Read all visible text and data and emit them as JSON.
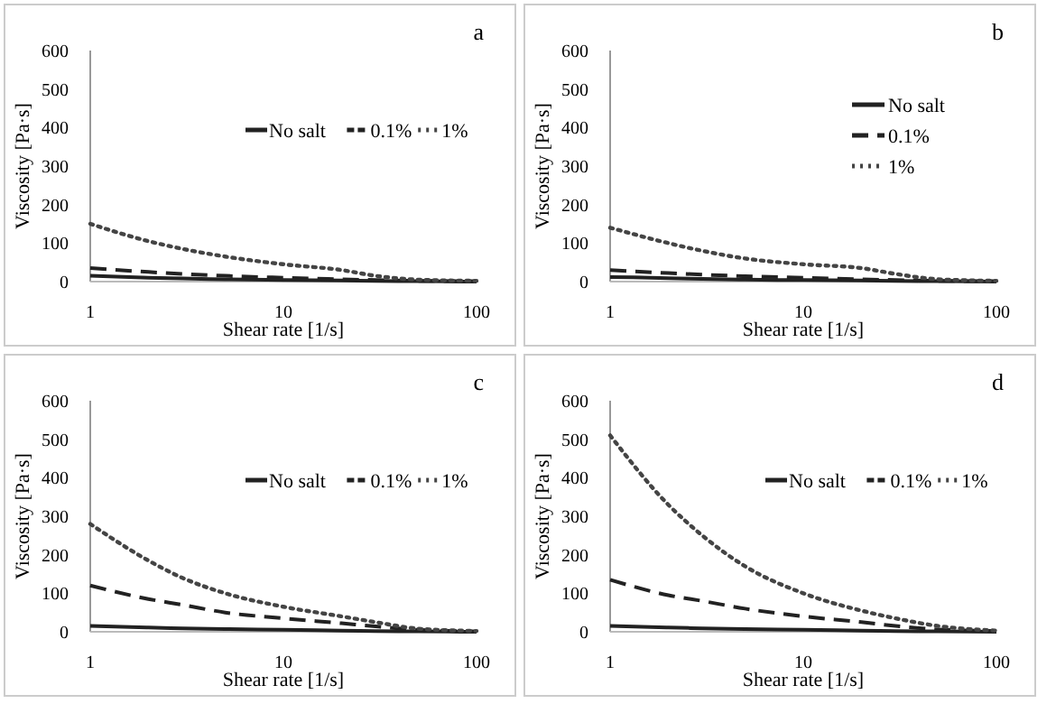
{
  "chart_data": [
    {
      "type": "line",
      "title": "a",
      "xlabel": "Shear rate [1/s]",
      "ylabel": "Viscosity [Pa·s]",
      "log": "x",
      "xlim": [
        1,
        100
      ],
      "xticks": [
        1,
        10,
        100
      ],
      "ylim": [
        0,
        600
      ],
      "yticks": [
        0,
        100,
        200,
        300,
        400,
        500,
        600
      ],
      "grid": false,
      "legend": "top right",
      "marker": "none",
      "x": [
        1,
        2,
        3,
        5,
        10,
        20,
        30,
        50,
        100
      ],
      "series": [
        {
          "name": "No salt",
          "color": "#222222",
          "line_style": "solid",
          "values": [
            15,
            10,
            8,
            6,
            4,
            3,
            2,
            1,
            0
          ]
        },
        {
          "name": "0.1%",
          "color": "#222222",
          "line_style": "dashed",
          "values": [
            35,
            25,
            20,
            15,
            10,
            6,
            4,
            2,
            1
          ]
        },
        {
          "name": "1%",
          "color": "#444444",
          "line_style": "dotted",
          "values": [
            150,
            105,
            85,
            65,
            45,
            30,
            15,
            5,
            2
          ]
        }
      ]
    },
    {
      "type": "line",
      "title": "b",
      "xlabel": "Shear rate [1/s]",
      "ylabel": "Viscosity [Pa·s]",
      "log": "x",
      "xlim": [
        1,
        100
      ],
      "xticks": [
        1,
        10,
        100
      ],
      "ylim": [
        0,
        600
      ],
      "yticks": [
        0,
        100,
        200,
        300,
        400,
        500,
        600
      ],
      "grid": false,
      "legend": "right",
      "marker": "none",
      "x": [
        1,
        2,
        3,
        5,
        10,
        20,
        30,
        50,
        100
      ],
      "series": [
        {
          "name": "No salt",
          "color": "#222222",
          "line_style": "solid",
          "values": [
            12,
            9,
            7,
            5,
            4,
            3,
            2,
            1,
            0
          ]
        },
        {
          "name": "0.1%",
          "color": "#222222",
          "line_style": "dashed",
          "values": [
            30,
            22,
            18,
            14,
            10,
            6,
            4,
            2,
            1
          ]
        },
        {
          "name": "1%",
          "color": "#444444",
          "line_style": "dotted",
          "values": [
            140,
            100,
            80,
            60,
            45,
            35,
            20,
            6,
            2
          ]
        }
      ]
    },
    {
      "type": "line",
      "title": "c",
      "xlabel": "Shear rate [1/s]",
      "ylabel": "Viscosity [Pa·s]",
      "log": "x",
      "xlim": [
        1,
        100
      ],
      "xticks": [
        1,
        10,
        100
      ],
      "ylim": [
        0,
        600
      ],
      "yticks": [
        0,
        100,
        200,
        300,
        400,
        500,
        600
      ],
      "grid": false,
      "legend": "top right",
      "marker": "none",
      "x": [
        1,
        2,
        3,
        5,
        10,
        20,
        30,
        50,
        100
      ],
      "series": [
        {
          "name": "No salt",
          "color": "#222222",
          "line_style": "solid",
          "values": [
            15,
            11,
            9,
            7,
            5,
            3,
            2,
            1,
            0
          ]
        },
        {
          "name": "0.1%",
          "color": "#222222",
          "line_style": "dashed",
          "values": [
            120,
            85,
            70,
            50,
            35,
            22,
            14,
            5,
            1
          ]
        },
        {
          "name": "1%",
          "color": "#444444",
          "line_style": "dotted",
          "values": [
            280,
            185,
            140,
            100,
            65,
            40,
            25,
            8,
            2
          ]
        }
      ]
    },
    {
      "type": "line",
      "title": "d",
      "xlabel": "Shear rate [1/s]",
      "ylabel": "Viscosity [Pa·s]",
      "log": "x",
      "xlim": [
        1,
        100
      ],
      "xticks": [
        1,
        10,
        100
      ],
      "ylim": [
        0,
        600
      ],
      "yticks": [
        0,
        100,
        200,
        300,
        400,
        500,
        600
      ],
      "grid": false,
      "legend": "top right",
      "marker": "none",
      "x": [
        1,
        2,
        3,
        5,
        10,
        20,
        30,
        50,
        100
      ],
      "series": [
        {
          "name": "No salt",
          "color": "#222222",
          "line_style": "solid",
          "values": [
            15,
            11,
            9,
            7,
            5,
            3,
            2,
            1,
            0
          ]
        },
        {
          "name": "0.1%",
          "color": "#222222",
          "line_style": "dashed",
          "values": [
            135,
            95,
            80,
            60,
            40,
            25,
            15,
            6,
            2
          ]
        },
        {
          "name": "1%",
          "color": "#444444",
          "line_style": "dotted",
          "values": [
            510,
            330,
            250,
            170,
            100,
            55,
            35,
            15,
            3
          ]
        }
      ]
    }
  ]
}
